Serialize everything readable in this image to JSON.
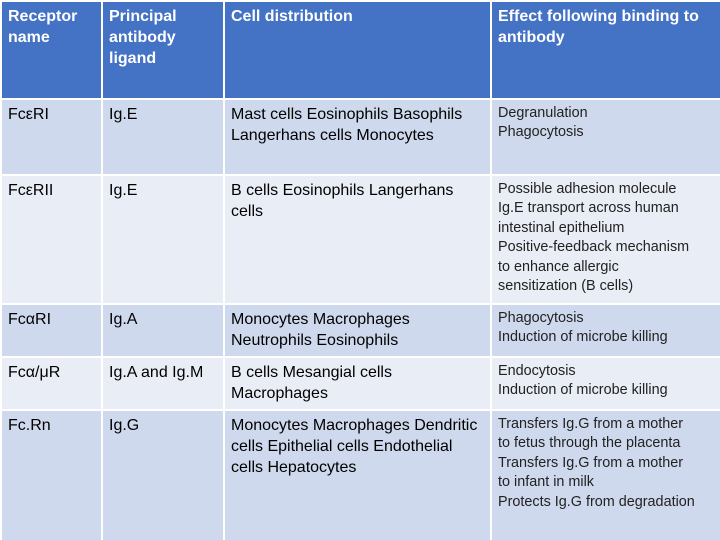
{
  "table": {
    "headers": [
      "Receptor name",
      "Principal antibody ligand",
      "Cell distribution",
      "Effect following binding to antibody"
    ],
    "rows": [
      {
        "receptor": "FcεRI",
        "ligand": "Ig.E",
        "cells": "Mast cells Eosinophils Basophils Langerhans cells Monocytes",
        "effect": [
          "Degranulation",
          "Phagocytosis"
        ]
      },
      {
        "receptor": "FcεRII",
        "ligand": "Ig.E",
        "cells": "B cells Eosinophils Langerhans cells",
        "effect": [
          "Possible adhesion molecule",
          "Ig.E transport across human",
          "intestinal epithelium",
          "Positive-feedback mechanism",
          "to enhance allergic",
          "sensitization (B cells)"
        ]
      },
      {
        "receptor": "FcαRI",
        "ligand": "Ig.A",
        "cells": "Monocytes Macrophages Neutrophils Eosinophils",
        "effect": [
          "Phagocytosis",
          "Induction of microbe killing"
        ]
      },
      {
        "receptor": "Fcα/μR",
        "ligand": "Ig.A and Ig.M",
        "cells": "B cells Mesangial cells Macrophages",
        "effect": [
          "Endocytosis",
          "Induction of microbe killing"
        ]
      },
      {
        "receptor": "Fc.Rn",
        "ligand": "Ig.G",
        "cells": "Monocytes Macrophages Dendritic cells Epithelial cells Endothelial cells Hepatocytes",
        "effect": [
          "Transfers Ig.G from a mother",
          "to fetus through the placenta",
          "Transfers Ig.G from a mother",
          "to infant in milk",
          "Protects Ig.G from degradation"
        ]
      }
    ]
  },
  "colors": {
    "header_bg": "#4472c4",
    "row_odd_bg": "#cfd9ed",
    "row_even_bg": "#e9edf5"
  }
}
